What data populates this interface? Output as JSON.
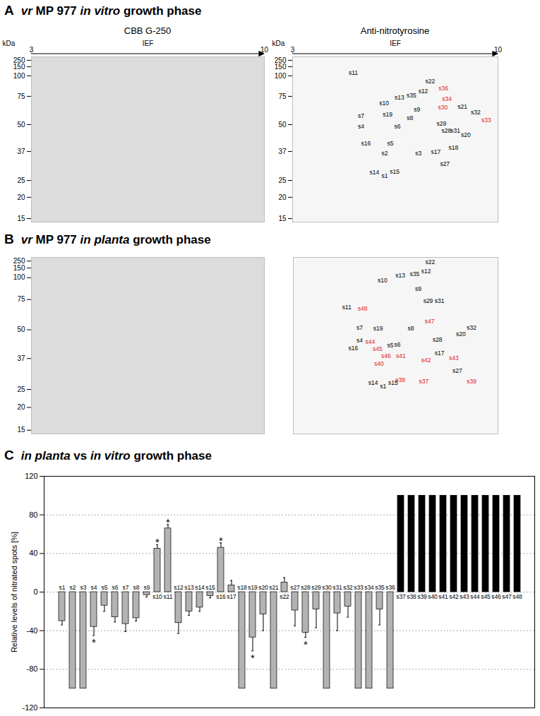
{
  "panels": [
    {
      "label": "A",
      "title": [
        {
          "text": "vr",
          "style": "italic"
        },
        {
          "text": " MP 977 "
        },
        {
          "text": "in vitro",
          "style": "italic"
        },
        {
          "text": " growth phase"
        }
      ]
    },
    {
      "label": "B",
      "title": [
        {
          "text": "vr",
          "style": "italic"
        },
        {
          "text": " MP 977 "
        },
        {
          "text": "in planta",
          "style": "italic"
        },
        {
          "text": " growth phase"
        }
      ]
    },
    {
      "label": "C",
      "title": [
        {
          "text": "in planta",
          "style": "italic"
        },
        {
          "text": " vs "
        },
        {
          "text": "in vitro",
          "style": "italic"
        },
        {
          "text": " growth phase"
        }
      ]
    }
  ],
  "chart_data": [
    {
      "panel": "A",
      "type": "gel",
      "title": "CBB G-250",
      "xlabel": "IEF",
      "xlim": [
        3,
        10
      ],
      "xticks": [
        3,
        10
      ],
      "ylabel": "kDa",
      "ylim": [
        14,
        270
      ],
      "yticks": [
        15,
        20,
        25,
        37,
        50,
        75,
        100,
        150,
        250
      ]
    },
    {
      "panel": "A",
      "type": "blot",
      "title": "Anti-nitrotyrosine",
      "xlabel": "IEF",
      "xlim": [
        3,
        10
      ],
      "xticks": [
        3,
        10
      ],
      "ylabel": "kDa",
      "ylim": [
        14,
        270
      ],
      "yticks": [
        15,
        20,
        25,
        37,
        50,
        75,
        100,
        150,
        250
      ],
      "labels": [
        "s11",
        "s7",
        "s4",
        "s16",
        "s10",
        "s19",
        "s13",
        "s35",
        "s12",
        "s22",
        "s36",
        "s34",
        "s30",
        "s21",
        "s32",
        "s33",
        "s9",
        "s8",
        "s6",
        "s5",
        "s29",
        "s28",
        "s31",
        "s20",
        "s18",
        "s17",
        "s27",
        "s2",
        "s3",
        "s14",
        "s1",
        "s15"
      ],
      "x": [
        5.07,
        5.33,
        5.33,
        5.5,
        6.12,
        6.24,
        6.64,
        7.05,
        7.45,
        7.69,
        8.14,
        8.26,
        8.12,
        8.79,
        9.24,
        9.6,
        7.24,
        7.0,
        6.57,
        6.33,
        8.07,
        8.24,
        8.55,
        8.9,
        8.48,
        7.88,
        8.19,
        6.14,
        7.29,
        5.79,
        6.14,
        6.48
      ],
      "y": [
        115,
        57.5,
        49,
        41,
        69,
        59,
        74,
        76,
        81,
        93,
        84.5,
        72.5,
        65,
        66,
        60.6,
        53.8,
        63,
        55.6,
        49,
        41,
        50.6,
        47,
        47,
        45,
        38.7,
        36.7,
        31.7,
        36.1,
        36.1,
        28.2,
        26.8,
        28.5
      ],
      "colors": [
        "#000000",
        "#000000",
        "#000000",
        "#000000",
        "#000000",
        "#000000",
        "#000000",
        "#000000",
        "#000000",
        "#000000",
        "#e31a1c",
        "#e31a1c",
        "#e31a1c",
        "#000000",
        "#000000",
        "#e31a1c",
        "#000000",
        "#000000",
        "#000000",
        "#000000",
        "#000000",
        "#000000",
        "#000000",
        "#000000",
        "#000000",
        "#000000",
        "#000000",
        "#000000",
        "#000000",
        "#000000",
        "#000000",
        "#000000"
      ]
    },
    {
      "panel": "B",
      "type": "gel",
      "ylim": [
        14,
        270
      ],
      "yticks": [
        15,
        20,
        25,
        37,
        50,
        75,
        100,
        150,
        250
      ],
      "tick_labels": "y"
    },
    {
      "panel": "B",
      "type": "blot",
      "xlim": [
        3,
        10
      ],
      "ylim": [
        14,
        270
      ],
      "yticks": [
        15,
        20,
        25,
        37,
        50,
        75,
        100,
        150,
        250
      ],
      "tick_labels": false,
      "labels": [
        "s11",
        "s48",
        "s10",
        "s13",
        "s35",
        "s12",
        "s22",
        "s9",
        "s29",
        "s31",
        "s7",
        "s19",
        "s8",
        "s32",
        "s20",
        "s28",
        "s47",
        "s4",
        "s44",
        "s45",
        "s5",
        "s6",
        "s46",
        "s16",
        "s43",
        "s17",
        "s41",
        "s42",
        "s40",
        "s27",
        "s14",
        "s1",
        "s15",
        "s38",
        "s37",
        "s39"
      ],
      "x": [
        4.83,
        5.37,
        6.05,
        6.66,
        7.15,
        7.54,
        7.68,
        7.27,
        7.61,
        8.0,
        5.27,
        5.9,
        7.02,
        9.1,
        8.73,
        7.93,
        7.66,
        5.27,
        5.63,
        5.88,
        6.32,
        6.56,
        6.17,
        5.05,
        8.49,
        8.0,
        6.68,
        7.54,
        5.93,
        8.61,
        5.73,
        6.07,
        6.41,
        6.66,
        7.46,
        9.1
      ],
      "y": [
        68.6,
        67.4,
        97,
        112.5,
        119,
        131,
        236,
        87,
        73.8,
        73.8,
        51.7,
        51.2,
        51.2,
        51.7,
        47.9,
        45.4,
        57,
        45.1,
        44.4,
        41.2,
        43,
        43.3,
        38.1,
        41.6,
        37,
        39.5,
        38.1,
        36.2,
        34.9,
        32.2,
        27.4,
        26.1,
        27.4,
        28.5,
        28.2,
        28.2
      ],
      "colors": [
        "#000000",
        "#e31a1c",
        "#000000",
        "#000000",
        "#000000",
        "#000000",
        "#000000",
        "#000000",
        "#000000",
        "#000000",
        "#000000",
        "#000000",
        "#000000",
        "#000000",
        "#000000",
        "#000000",
        "#e31a1c",
        "#000000",
        "#e31a1c",
        "#e31a1c",
        "#000000",
        "#000000",
        "#e31a1c",
        "#000000",
        "#e31a1c",
        "#000000",
        "#e31a1c",
        "#e31a1c",
        "#e31a1c",
        "#000000",
        "#000000",
        "#000000",
        "#000000",
        "#e31a1c",
        "#e31a1c",
        "#e31a1c"
      ]
    },
    {
      "panel": "C",
      "type": "bar",
      "ylabel": "Relative levels of nitrated spots [%]",
      "categories": [
        "s1",
        "s2",
        "s3",
        "s4",
        "s5",
        "s6",
        "s7",
        "s8",
        "s9",
        "s10",
        "s11",
        "s12",
        "s13",
        "s14",
        "s15",
        "s16",
        "s17",
        "s18",
        "s19",
        "s20",
        "s21",
        "s22",
        "s27",
        "s28",
        "s29",
        "s30",
        "s31",
        "s32",
        "s33",
        "s34",
        "s35",
        "s36",
        "s37",
        "s38",
        "s39",
        "s40",
        "s41",
        "s42",
        "s43",
        "s44",
        "s45",
        "s46",
        "s47",
        "s48"
      ],
      "values": [
        -30,
        -100,
        -100,
        -36,
        -14,
        -26,
        -33,
        -27,
        -3,
        45,
        66,
        -32,
        -20,
        -16,
        -4,
        46,
        7,
        -100,
        -47,
        -23,
        -100,
        10,
        -19,
        -42,
        -18,
        -100,
        -22,
        -15,
        -100,
        -100,
        -18,
        -100,
        100,
        100,
        100,
        100,
        100,
        100,
        100,
        100,
        100,
        100,
        100,
        100
      ],
      "errors": [
        4,
        null,
        null,
        9,
        6,
        5,
        8,
        3,
        2,
        4,
        4,
        11,
        4,
        4,
        2,
        5,
        5,
        null,
        14,
        17,
        null,
        5,
        16,
        5,
        19,
        null,
        18,
        11,
        null,
        null,
        16,
        null,
        null,
        null,
        null,
        null,
        null,
        null,
        null,
        null,
        null,
        null,
        null,
        null
      ],
      "colors": [
        "#b3b3b3",
        "#b3b3b3",
        "#b3b3b3",
        "#b3b3b3",
        "#b3b3b3",
        "#b3b3b3",
        "#b3b3b3",
        "#b3b3b3",
        "#b3b3b3",
        "#b3b3b3",
        "#b3b3b3",
        "#b3b3b3",
        "#b3b3b3",
        "#b3b3b3",
        "#b3b3b3",
        "#b3b3b3",
        "#b3b3b3",
        "#b3b3b3",
        "#b3b3b3",
        "#b3b3b3",
        "#b3b3b3",
        "#b3b3b3",
        "#b3b3b3",
        "#b3b3b3",
        "#b3b3b3",
        "#b3b3b3",
        "#b3b3b3",
        "#b3b3b3",
        "#b3b3b3",
        "#b3b3b3",
        "#b3b3b3",
        "#b3b3b3",
        "#000000",
        "#000000",
        "#000000",
        "#000000",
        "#000000",
        "#000000",
        "#000000",
        "#000000",
        "#000000",
        "#000000",
        "#000000",
        "#000000"
      ],
      "annotations": [
        {
          "category": "s4",
          "text": "*"
        },
        {
          "category": "s10",
          "text": "*"
        },
        {
          "category": "s11",
          "text": "*"
        },
        {
          "category": "s16",
          "text": "*"
        },
        {
          "category": "s19",
          "text": "*"
        },
        {
          "category": "s28",
          "text": "*"
        }
      ],
      "ylim": [
        -120,
        120
      ],
      "yticks": [
        -120,
        -80,
        -40,
        0,
        40,
        80,
        120
      ],
      "grid": true,
      "tick_labels": "y"
    }
  ]
}
